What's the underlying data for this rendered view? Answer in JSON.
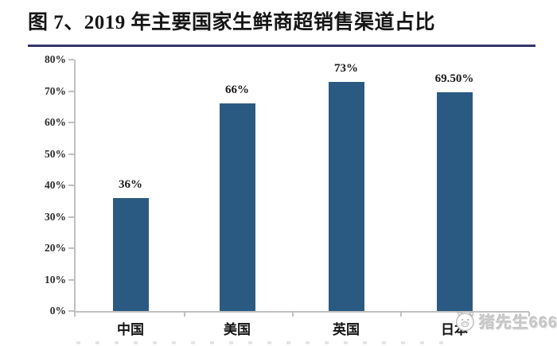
{
  "title": "图 7、2019 年主要国家生鲜商超销售渠道占比",
  "watermark": {
    "icon": "pig-face-icon",
    "text": "猪先生666"
  },
  "colors": {
    "bar": "#2a5a82",
    "title_underline": "#34346b",
    "axis": "#c0c0c0",
    "text": "#1a1a1a",
    "watermark": "#c9c9c9"
  },
  "chart_data": {
    "type": "bar",
    "title": "图 7、2019 年主要国家生鲜商超销售渠道占比",
    "categories": [
      "中国",
      "美国",
      "英国",
      "日本"
    ],
    "values": [
      36,
      66,
      73,
      69.5
    ],
    "data_labels": [
      "36%",
      "66%",
      "73%",
      "69.50%"
    ],
    "xlabel": "",
    "ylabel": "",
    "ylim": [
      0,
      80
    ],
    "ytick_labels": [
      "0%",
      "10%",
      "20%",
      "30%",
      "40%",
      "50%",
      "60%",
      "70%",
      "80%"
    ],
    "grid": false,
    "legend": "none",
    "bar_color": "#2a5a82"
  }
}
